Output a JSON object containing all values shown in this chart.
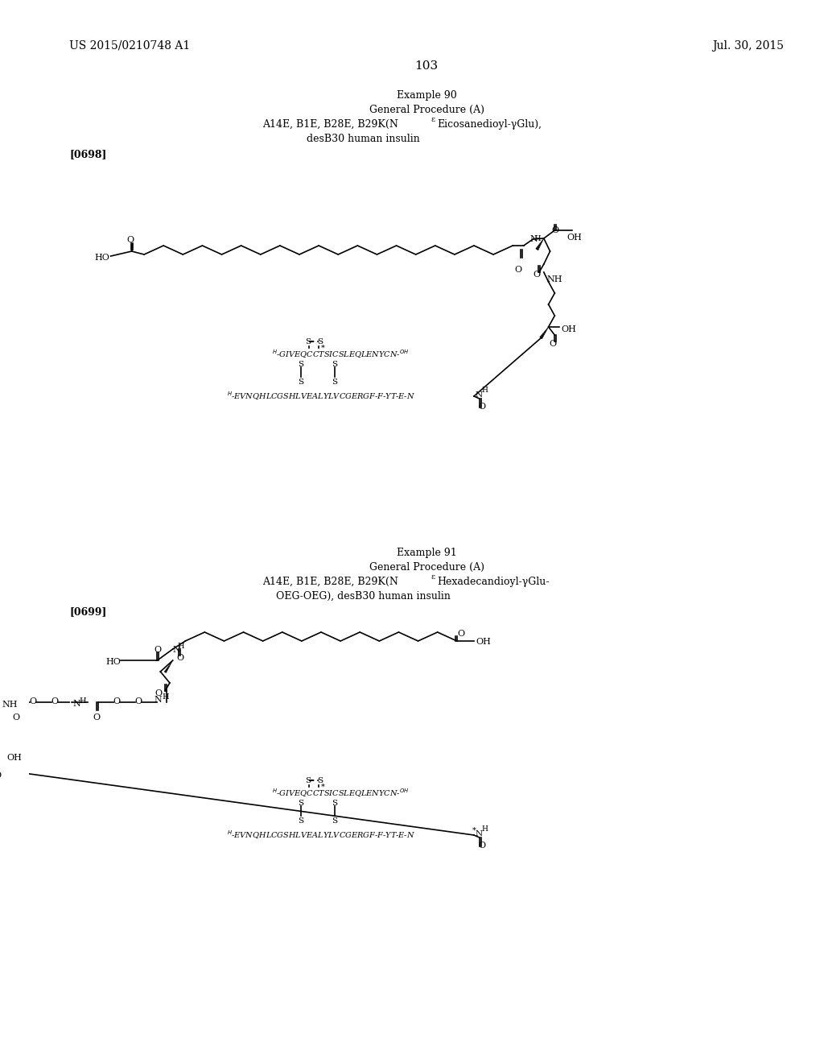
{
  "page_number": "103",
  "patent_left": "US 2015/0210748 A1",
  "patent_right": "Jul. 30, 2015",
  "background_color": "#ffffff",
  "text_color": "#000000",
  "example90": {
    "title": "Example 90",
    "procedure": "General Procedure (A)",
    "desc1": "A14E, B1E, B28E, B29K(N",
    "desc1_super": "ε",
    "desc1_rest": "Eicosanedioyl-γGlu),",
    "desc2": "desB30 human insulin",
    "tag": "[0698]",
    "achain": "GIVEQCCTSICSLEQLENYCN",
    "bchain": "EVNQHLCGSHLVEALYLVCGERGF-F-YT-E-N"
  },
  "example91": {
    "title": "Example 91",
    "procedure": "General Procedure (A)",
    "desc1": "A14E, B1E, B28E, B29K(N",
    "desc1_super": "ε",
    "desc1_rest": "Hexadecandioyl-γGlu-",
    "desc2": "OEG-OEG), desB30 human insulin",
    "tag": "[0699]",
    "achain": "GIVEQCCTSICSLEQLENYCN",
    "bchain": "EVNQHLCGSHLVEALYLVCGERGF-F-YT-E-N"
  }
}
